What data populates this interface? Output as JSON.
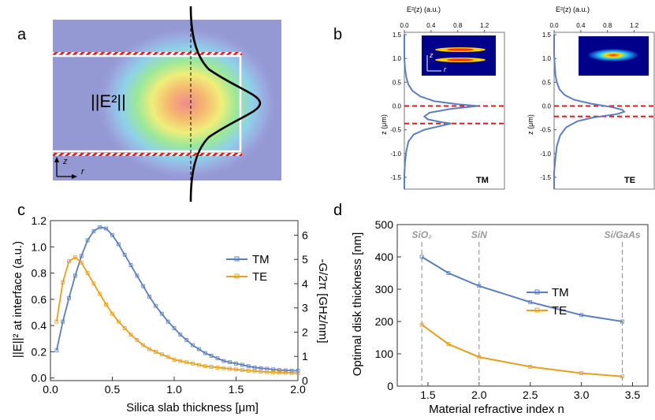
{
  "panel_labels": [
    "a",
    "b",
    "c",
    "d"
  ],
  "panel_a": {
    "field_label": "||E²||",
    "axis_z": "z",
    "axis_r": "r"
  },
  "panel_b": {
    "top_axis_label": "E²(z)  (a.u.)",
    "left_axis_label": "z (μm)",
    "inset_axis_z": "z",
    "inset_axis_r": "r",
    "plots": [
      {
        "mode": "TM",
        "interfaces": [
          0.0,
          -0.37
        ]
      },
      {
        "mode": "TE",
        "interfaces": [
          0.0,
          -0.22
        ]
      }
    ]
  },
  "chart_data": [
    {
      "type": "line",
      "panel": "b-TM",
      "xlabel": "E²(z)  (a.u.)",
      "ylabel": "z (μm)",
      "xlim": [
        0,
        1.5
      ],
      "ylim": [
        -1.75,
        1.55
      ],
      "xticks": [
        "0.0",
        "0.4",
        "0.8",
        "1.2"
      ],
      "yticks": [
        "1.5",
        "1.0",
        "0.5",
        "0.0",
        "-0.5",
        "-1.0",
        "-1.5"
      ],
      "annotation": "TM",
      "series": [
        {
          "x": [
            0.0,
            0.0,
            0.0,
            0.01,
            0.03,
            0.06,
            0.12,
            0.24,
            0.45,
            0.78,
            1.1,
            0.7,
            0.38,
            0.3,
            0.35,
            0.55,
            0.7,
            0.3,
            0.14,
            0.06,
            0.03,
            0.01,
            0.0,
            0.0
          ],
          "y": [
            1.5,
            1.2,
            1.0,
            0.8,
            0.6,
            0.45,
            0.32,
            0.2,
            0.1,
            0.04,
            0.0,
            -0.06,
            -0.14,
            -0.22,
            -0.28,
            -0.34,
            -0.37,
            -0.5,
            -0.6,
            -0.75,
            -0.95,
            -1.2,
            -1.45,
            -1.75
          ]
        }
      ]
    },
    {
      "type": "line",
      "panel": "b-TE",
      "xlabel": "E²(z)  (a.u.)",
      "ylabel": "z (μm)",
      "xlim": [
        0,
        1.5
      ],
      "ylim": [
        -1.75,
        1.55
      ],
      "xticks": [
        "0.0",
        "0.4",
        "0.8",
        "1.2"
      ],
      "yticks": [
        "1.5",
        "1.0",
        "0.5",
        "0.0",
        "-0.5",
        "-1.0",
        "-1.5"
      ],
      "annotation": "TE",
      "series": [
        {
          "x": [
            0.0,
            0.0,
            0.01,
            0.02,
            0.04,
            0.08,
            0.16,
            0.3,
            0.55,
            0.85,
            1.02,
            1.05,
            0.95,
            0.6,
            0.35,
            0.18,
            0.09,
            0.04,
            0.02,
            0.0,
            0.0
          ],
          "y": [
            1.5,
            1.1,
            0.85,
            0.65,
            0.5,
            0.35,
            0.23,
            0.13,
            0.05,
            -0.02,
            -0.08,
            -0.12,
            -0.17,
            -0.24,
            -0.32,
            -0.45,
            -0.62,
            -0.85,
            -1.1,
            -1.4,
            -1.75
          ]
        }
      ]
    },
    {
      "type": "line",
      "panel": "c",
      "xlabel": "Silica slab thickness [μm]",
      "ylabel": "||E||² at interface (a.u.)",
      "ylabel_right": "-G/2π  [GHz/nm]",
      "xlim": [
        0,
        2.0
      ],
      "ylim": [
        -0.02,
        1.2
      ],
      "ylim_right": [
        0,
        6.6
      ],
      "xticks": [
        "0.0",
        "0.5",
        "1.0",
        "1.5",
        "2.0"
      ],
      "yticks": [
        "0.0",
        "0.2",
        "0.4",
        "0.6",
        "0.8",
        "1.0",
        "1.2"
      ],
      "yticks_right": [
        "0",
        "1",
        "2",
        "3",
        "4",
        "5",
        "6"
      ],
      "legend": "right",
      "series": [
        {
          "name": "TM",
          "color": "#5b7fbd",
          "x": [
            0.05,
            0.1,
            0.15,
            0.2,
            0.25,
            0.3,
            0.35,
            0.4,
            0.45,
            0.5,
            0.55,
            0.6,
            0.65,
            0.7,
            0.75,
            0.8,
            0.85,
            0.9,
            0.95,
            1.0,
            1.05,
            1.1,
            1.15,
            1.2,
            1.25,
            1.3,
            1.35,
            1.4,
            1.45,
            1.5,
            1.55,
            1.6,
            1.65,
            1.7,
            1.75,
            1.8,
            1.85,
            1.9,
            1.95,
            2.0
          ],
          "y": [
            0.21,
            0.43,
            0.61,
            0.78,
            0.93,
            1.05,
            1.12,
            1.15,
            1.14,
            1.09,
            1.02,
            0.94,
            0.86,
            0.78,
            0.7,
            0.62,
            0.55,
            0.49,
            0.43,
            0.38,
            0.33,
            0.29,
            0.25,
            0.22,
            0.19,
            0.17,
            0.15,
            0.13,
            0.12,
            0.11,
            0.1,
            0.09,
            0.08,
            0.075,
            0.07,
            0.065,
            0.06,
            0.058,
            0.056,
            0.055
          ]
        },
        {
          "name": "TE",
          "color": "#e6a020",
          "x": [
            0.05,
            0.1,
            0.15,
            0.2,
            0.25,
            0.3,
            0.35,
            0.4,
            0.45,
            0.5,
            0.55,
            0.6,
            0.65,
            0.7,
            0.75,
            0.8,
            0.85,
            0.9,
            0.95,
            1.0,
            1.05,
            1.1,
            1.15,
            1.2,
            1.25,
            1.3,
            1.35,
            1.4,
            1.45,
            1.5,
            1.55,
            1.6,
            1.65,
            1.7,
            1.75,
            1.8,
            1.85,
            1.9,
            1.95,
            2.0
          ],
          "y": [
            0.43,
            0.73,
            0.89,
            0.92,
            0.88,
            0.8,
            0.72,
            0.64,
            0.56,
            0.49,
            0.43,
            0.38,
            0.33,
            0.29,
            0.25,
            0.22,
            0.2,
            0.18,
            0.16,
            0.14,
            0.13,
            0.12,
            0.11,
            0.1,
            0.09,
            0.085,
            0.08,
            0.075,
            0.07,
            0.065,
            0.06,
            0.056,
            0.052,
            0.049,
            0.046,
            0.044,
            0.042,
            0.04,
            0.038,
            0.037
          ]
        }
      ]
    },
    {
      "type": "line",
      "panel": "d",
      "xlabel": "Material refractive index n",
      "ylabel": "Optimal disk thickness [nm]",
      "xlim": [
        1.2,
        3.65
      ],
      "ylim": [
        0,
        500
      ],
      "xticks": [
        "1.5",
        "2.0",
        "2.5",
        "3.0",
        "3.5"
      ],
      "yticks": [
        "0",
        "100",
        "200",
        "300",
        "400",
        "500"
      ],
      "legend": "center-right",
      "series": [
        {
          "name": "TM",
          "color": "#5b7fbd",
          "x": [
            1.44,
            1.7,
            2.0,
            2.5,
            3.0,
            3.4
          ],
          "y": [
            400,
            350,
            310,
            260,
            220,
            200
          ]
        },
        {
          "name": "TE",
          "color": "#e6a020",
          "x": [
            1.44,
            1.7,
            2.0,
            2.5,
            3.0,
            3.4
          ],
          "y": [
            190,
            130,
            90,
            60,
            40,
            30
          ]
        }
      ],
      "material_lines": [
        {
          "label": "SiO₂",
          "n": 1.44
        },
        {
          "label": "SiN",
          "n": 2.0
        },
        {
          "label": "Si/GaAs",
          "n": 3.4
        }
      ]
    }
  ]
}
